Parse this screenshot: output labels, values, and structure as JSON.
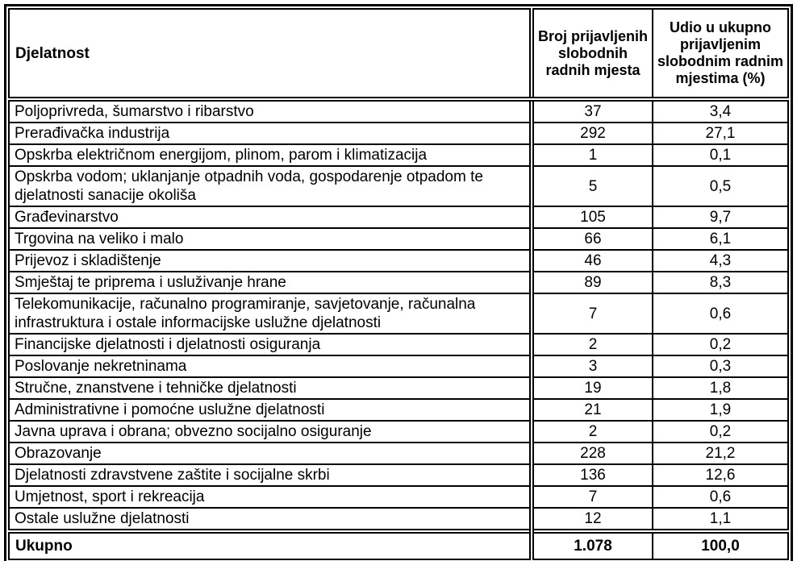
{
  "page": {
    "background_color": "#ffffff",
    "text_color": "#000000",
    "border_color": "#000000"
  },
  "table": {
    "header": {
      "activity": "Djelatnost",
      "count": "Broj prijavljenih slobodnih radnih mjesta",
      "share": "Udio u ukupno prijavljenim slobodnim radnim mjestima (%)"
    },
    "rows": [
      {
        "label": "Poljoprivreda, šumarstvo i ribarstvo",
        "count": "37",
        "share": "3,4"
      },
      {
        "label": "Prerađivačka industrija",
        "count": "292",
        "share": "27,1"
      },
      {
        "label": "Opskrba električnom energijom, plinom, parom i klimatizacija",
        "count": "1",
        "share": "0,1"
      },
      {
        "label": "Opskrba vodom; uklanjanje otpadnih voda, gospodarenje otpadom te djelatnosti sanacije okoliša",
        "count": "5",
        "share": "0,5"
      },
      {
        "label": "Građevinarstvo",
        "count": "105",
        "share": "9,7"
      },
      {
        "label": "Trgovina na veliko i malo",
        "count": "66",
        "share": "6,1"
      },
      {
        "label": "Prijevoz i skladištenje",
        "count": "46",
        "share": "4,3"
      },
      {
        "label": "Smještaj te priprema i usluživanje hrane",
        "count": "89",
        "share": "8,3"
      },
      {
        "label": "Telekomunikacije, računalno programiranje, savjetovanje, računalna infrastruktura i ostale informacijske uslužne djelatnosti",
        "count": "7",
        "share": "0,6"
      },
      {
        "label": "Financijske djelatnosti i djelatnosti osiguranja",
        "count": "2",
        "share": "0,2"
      },
      {
        "label": "Poslovanje nekretninama",
        "count": "3",
        "share": "0,3"
      },
      {
        "label": "Stručne, znanstvene i tehničke djelatnosti",
        "count": "19",
        "share": "1,8"
      },
      {
        "label": "Administrativne i pomoćne uslužne djelatnosti",
        "count": "21",
        "share": "1,9"
      },
      {
        "label": "Javna uprava i obrana; obvezno socijalno osiguranje",
        "count": "2",
        "share": "0,2"
      },
      {
        "label": "Obrazovanje",
        "count": "228",
        "share": "21,2"
      },
      {
        "label": "Djelatnosti zdravstvene zaštite i socijalne skrbi",
        "count": "136",
        "share": "12,6"
      },
      {
        "label": "Umjetnost, sport i rekreacija",
        "count": "7",
        "share": "0,6"
      },
      {
        "label": "Ostale uslužne djelatnosti",
        "count": "12",
        "share": "1,1"
      }
    ],
    "total": {
      "label": "Ukupno",
      "count": "1.078",
      "share": "100,0"
    }
  }
}
